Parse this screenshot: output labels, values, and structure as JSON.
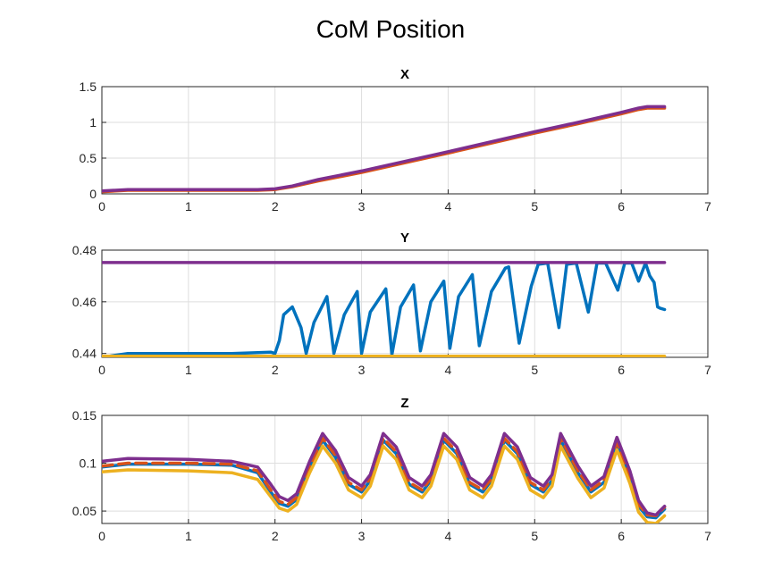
{
  "figure": {
    "title": "CoM Position"
  },
  "colors": {
    "blue": "#0072BD",
    "orange": "#D95319",
    "yellow": "#EDB120",
    "purple": "#7E2F8E"
  },
  "chart_data": [
    {
      "type": "line",
      "title": "X",
      "xlim": [
        0,
        7
      ],
      "ylim": [
        0,
        1.5
      ],
      "xticks": [
        "0",
        "1",
        "2",
        "3",
        "4",
        "5",
        "6",
        "7"
      ],
      "yticks": [
        "0",
        "0.5",
        "1",
        "1.5"
      ],
      "grid": true,
      "series": [
        {
          "color": "#D95319",
          "dash": false,
          "x": [
            0,
            0.3,
            1,
            1.8,
            2.0,
            2.2,
            2.5,
            3,
            4,
            5,
            5.5,
            6,
            6.2,
            6.3,
            6.5
          ],
          "y": [
            0.03,
            0.05,
            0.05,
            0.05,
            0.06,
            0.1,
            0.18,
            0.3,
            0.57,
            0.85,
            0.98,
            1.12,
            1.18,
            1.2,
            1.2
          ]
        },
        {
          "color": "#7E2F8E",
          "dash": false,
          "x": [
            0,
            0.3,
            1,
            1.8,
            2.0,
            2.2,
            2.5,
            3,
            4,
            5,
            5.5,
            6,
            6.2,
            6.3,
            6.5
          ],
          "y": [
            0.04,
            0.06,
            0.06,
            0.06,
            0.07,
            0.11,
            0.2,
            0.32,
            0.59,
            0.87,
            1.0,
            1.14,
            1.2,
            1.22,
            1.22
          ]
        }
      ]
    },
    {
      "type": "line",
      "title": "Y",
      "xlim": [
        0,
        7
      ],
      "ylim": [
        0.4385,
        0.48
      ],
      "xticks": [
        "0",
        "1",
        "2",
        "3",
        "4",
        "5",
        "6",
        "7"
      ],
      "yticks": [
        "0.44",
        "0.46",
        "0.48"
      ],
      "grid": true,
      "series": [
        {
          "color": "#0072BD",
          "dash": false,
          "x": [
            0,
            0.2,
            0.3,
            1,
            1.5,
            1.95,
            2.0,
            2.05,
            2.1,
            2.2,
            2.3,
            2.36,
            2.45,
            2.6,
            2.68,
            2.8,
            2.95,
            3.0,
            3.1,
            3.28,
            3.35,
            3.45,
            3.6,
            3.68,
            3.8,
            3.95,
            4.02,
            4.12,
            4.28,
            4.36,
            4.5,
            4.66,
            4.7,
            4.82,
            4.96,
            5.04,
            5.15,
            5.28,
            5.37,
            5.48,
            5.62,
            5.72,
            5.82,
            5.96,
            6.04,
            6.12,
            6.2,
            6.28,
            6.33,
            6.38,
            6.42,
            6.45,
            6.5
          ],
          "y": [
            0.4385,
            0.4395,
            0.44,
            0.44,
            0.44,
            0.4405,
            0.44,
            0.445,
            0.455,
            0.458,
            0.45,
            0.44,
            0.452,
            0.462,
            0.44,
            0.455,
            0.464,
            0.44,
            0.456,
            0.465,
            0.4395,
            0.458,
            0.4665,
            0.441,
            0.46,
            0.468,
            0.442,
            0.462,
            0.4705,
            0.443,
            0.464,
            0.473,
            0.4735,
            0.444,
            0.466,
            0.4745,
            0.475,
            0.45,
            0.4745,
            0.475,
            0.456,
            0.475,
            0.475,
            0.4645,
            0.475,
            0.475,
            0.468,
            0.475,
            0.47,
            0.4675,
            0.458,
            0.4575,
            0.457
          ]
        },
        {
          "color": "#D95319",
          "dash": true,
          "x": [
            0,
            6.5
          ],
          "y": [
            0.4383,
            0.4383
          ]
        },
        {
          "color": "#EDB120",
          "dash": false,
          "x": [
            0,
            6.5
          ],
          "y": [
            0.4389,
            0.4389
          ]
        },
        {
          "color": "#7E2F8E",
          "dash": false,
          "x": [
            0,
            6.5
          ],
          "y": [
            0.4752,
            0.4752
          ]
        }
      ]
    },
    {
      "type": "line",
      "title": "Z",
      "xlim": [
        0,
        7
      ],
      "ylim": [
        0.037,
        0.15
      ],
      "xticks": [
        "0",
        "1",
        "2",
        "3",
        "4",
        "5",
        "6",
        "7"
      ],
      "yticks": [
        "0.05",
        "0.1",
        "0.15"
      ],
      "grid": true,
      "series": [
        {
          "color": "#0072BD",
          "dash": false,
          "x": [
            0,
            0.3,
            1,
            1.5,
            1.8,
            1.95,
            2.05,
            2.15,
            2.25,
            2.4,
            2.55,
            2.7,
            2.85,
            3.0,
            3.1,
            3.25,
            3.4,
            3.55,
            3.7,
            3.8,
            3.95,
            4.1,
            4.25,
            4.4,
            4.5,
            4.65,
            4.8,
            4.95,
            5.1,
            5.2,
            5.3,
            5.5,
            5.65,
            5.8,
            5.95,
            6.1,
            6.2,
            6.3,
            6.4,
            6.5
          ],
          "y": [
            0.096,
            0.099,
            0.099,
            0.098,
            0.09,
            0.07,
            0.058,
            0.055,
            0.062,
            0.095,
            0.124,
            0.106,
            0.078,
            0.07,
            0.082,
            0.124,
            0.11,
            0.078,
            0.07,
            0.082,
            0.124,
            0.11,
            0.078,
            0.07,
            0.082,
            0.124,
            0.11,
            0.078,
            0.07,
            0.082,
            0.124,
            0.09,
            0.07,
            0.08,
            0.12,
            0.085,
            0.055,
            0.044,
            0.043,
            0.052
          ]
        },
        {
          "color": "#D95319",
          "dash": true,
          "x": [
            0,
            0.3,
            1,
            1.5,
            1.8,
            1.95,
            2.05,
            2.15,
            2.25,
            2.4,
            2.55,
            2.7,
            2.85,
            3.0,
            3.1,
            3.25,
            3.4,
            3.55,
            3.7,
            3.8,
            3.95,
            4.1,
            4.25,
            4.4,
            4.5,
            4.65,
            4.8,
            4.95,
            5.1,
            5.2,
            5.3,
            5.5,
            5.65,
            5.8,
            5.95,
            6.1,
            6.2,
            6.3,
            6.4,
            6.5
          ],
          "y": [
            0.097,
            0.1,
            0.1,
            0.099,
            0.092,
            0.072,
            0.06,
            0.057,
            0.064,
            0.097,
            0.126,
            0.108,
            0.08,
            0.072,
            0.084,
            0.126,
            0.112,
            0.08,
            0.072,
            0.084,
            0.126,
            0.112,
            0.08,
            0.072,
            0.084,
            0.126,
            0.112,
            0.08,
            0.072,
            0.084,
            0.126,
            0.092,
            0.072,
            0.082,
            0.122,
            0.087,
            0.057,
            0.046,
            0.045,
            0.054
          ]
        },
        {
          "color": "#EDB120",
          "dash": false,
          "x": [
            0,
            0.3,
            1,
            1.5,
            1.8,
            1.95,
            2.05,
            2.15,
            2.25,
            2.4,
            2.55,
            2.7,
            2.85,
            3.0,
            3.1,
            3.25,
            3.4,
            3.55,
            3.7,
            3.8,
            3.95,
            4.1,
            4.25,
            4.4,
            4.5,
            4.65,
            4.8,
            4.95,
            5.1,
            5.2,
            5.3,
            5.5,
            5.65,
            5.8,
            5.95,
            6.1,
            6.2,
            6.3,
            6.4,
            6.5
          ],
          "y": [
            0.091,
            0.093,
            0.092,
            0.09,
            0.083,
            0.065,
            0.053,
            0.05,
            0.057,
            0.09,
            0.118,
            0.1,
            0.072,
            0.064,
            0.076,
            0.118,
            0.104,
            0.072,
            0.064,
            0.076,
            0.118,
            0.104,
            0.072,
            0.064,
            0.076,
            0.118,
            0.104,
            0.072,
            0.064,
            0.076,
            0.118,
            0.084,
            0.064,
            0.074,
            0.114,
            0.079,
            0.049,
            0.038,
            0.037,
            0.045
          ]
        },
        {
          "color": "#7E2F8E",
          "dash": false,
          "x": [
            0,
            0.3,
            1,
            1.5,
            1.8,
            1.95,
            2.05,
            2.15,
            2.25,
            2.4,
            2.55,
            2.7,
            2.85,
            3.0,
            3.1,
            3.25,
            3.4,
            3.55,
            3.7,
            3.8,
            3.95,
            4.1,
            4.25,
            4.4,
            4.5,
            4.65,
            4.8,
            4.95,
            5.1,
            5.2,
            5.3,
            5.5,
            5.65,
            5.8,
            5.95,
            6.1,
            6.2,
            6.3,
            6.4,
            6.5
          ],
          "y": [
            0.102,
            0.105,
            0.104,
            0.102,
            0.096,
            0.078,
            0.065,
            0.061,
            0.068,
            0.102,
            0.131,
            0.113,
            0.085,
            0.076,
            0.088,
            0.131,
            0.117,
            0.085,
            0.076,
            0.088,
            0.131,
            0.117,
            0.085,
            0.076,
            0.088,
            0.131,
            0.117,
            0.085,
            0.076,
            0.088,
            0.131,
            0.097,
            0.076,
            0.086,
            0.127,
            0.092,
            0.061,
            0.048,
            0.046,
            0.055
          ]
        }
      ]
    }
  ]
}
